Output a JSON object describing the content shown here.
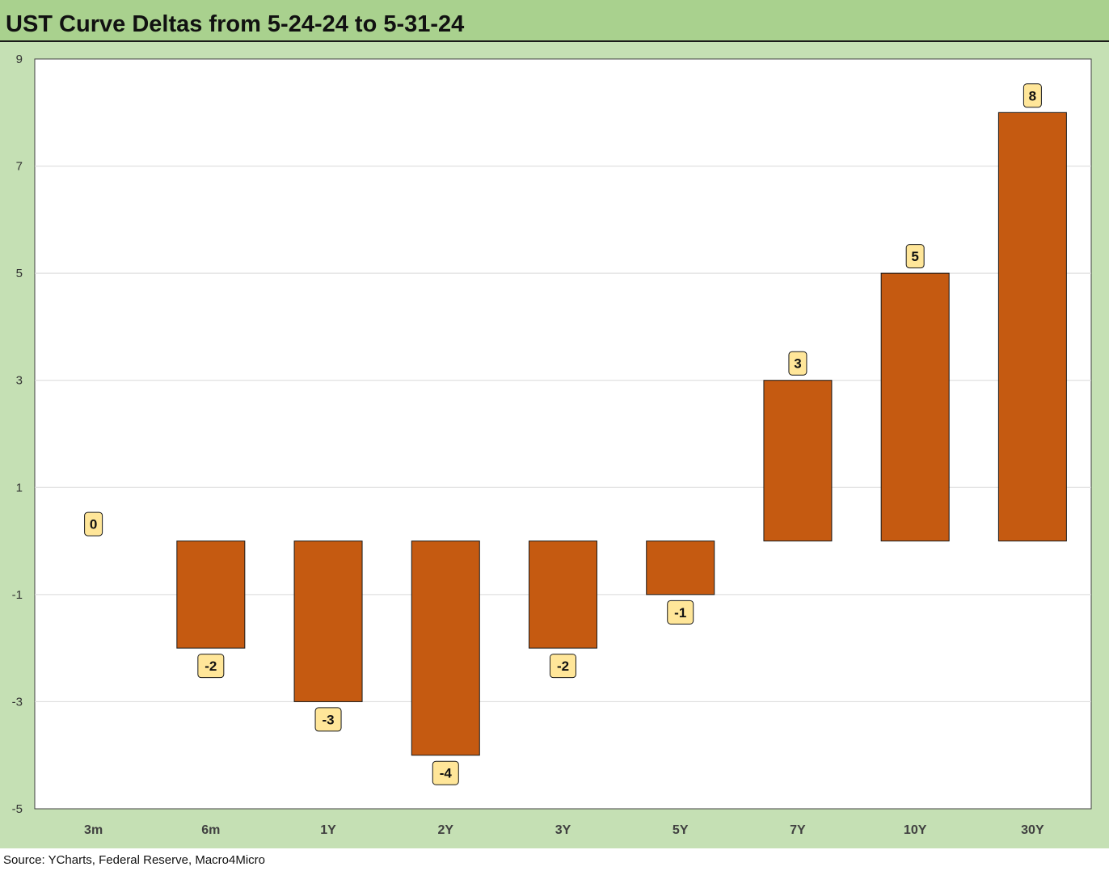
{
  "title": "UST Curve Deltas from 5-24-24 to 5-31-24",
  "source": "Source: YCharts, Federal Reserve, Macro4Micro",
  "colors": {
    "title_bg": "#a9d18e",
    "chart_bg": "#c5e0b4",
    "plot_bg": "#ffffff",
    "bar": "#c55a11",
    "label_bg": "#ffe699"
  },
  "chart_data": {
    "type": "bar",
    "categories": [
      "3m",
      "6m",
      "1Y",
      "2Y",
      "3Y",
      "5Y",
      "7Y",
      "10Y",
      "30Y"
    ],
    "values": [
      0,
      -2,
      -3,
      -4,
      -2,
      -1,
      3,
      5,
      8
    ],
    "data_labels": [
      "0",
      "-2",
      "-3",
      "-4",
      "-2",
      "-1",
      "3",
      "5",
      "8"
    ],
    "ylim": [
      -5,
      9
    ],
    "yticks": [
      9,
      7,
      5,
      3,
      1,
      -1,
      -3,
      -5
    ],
    "ytick_labels": [
      "9",
      "7",
      "5",
      "3",
      "1",
      "-1",
      "-3",
      "-5"
    ],
    "grid": true,
    "xlabel": "",
    "ylabel": ""
  }
}
